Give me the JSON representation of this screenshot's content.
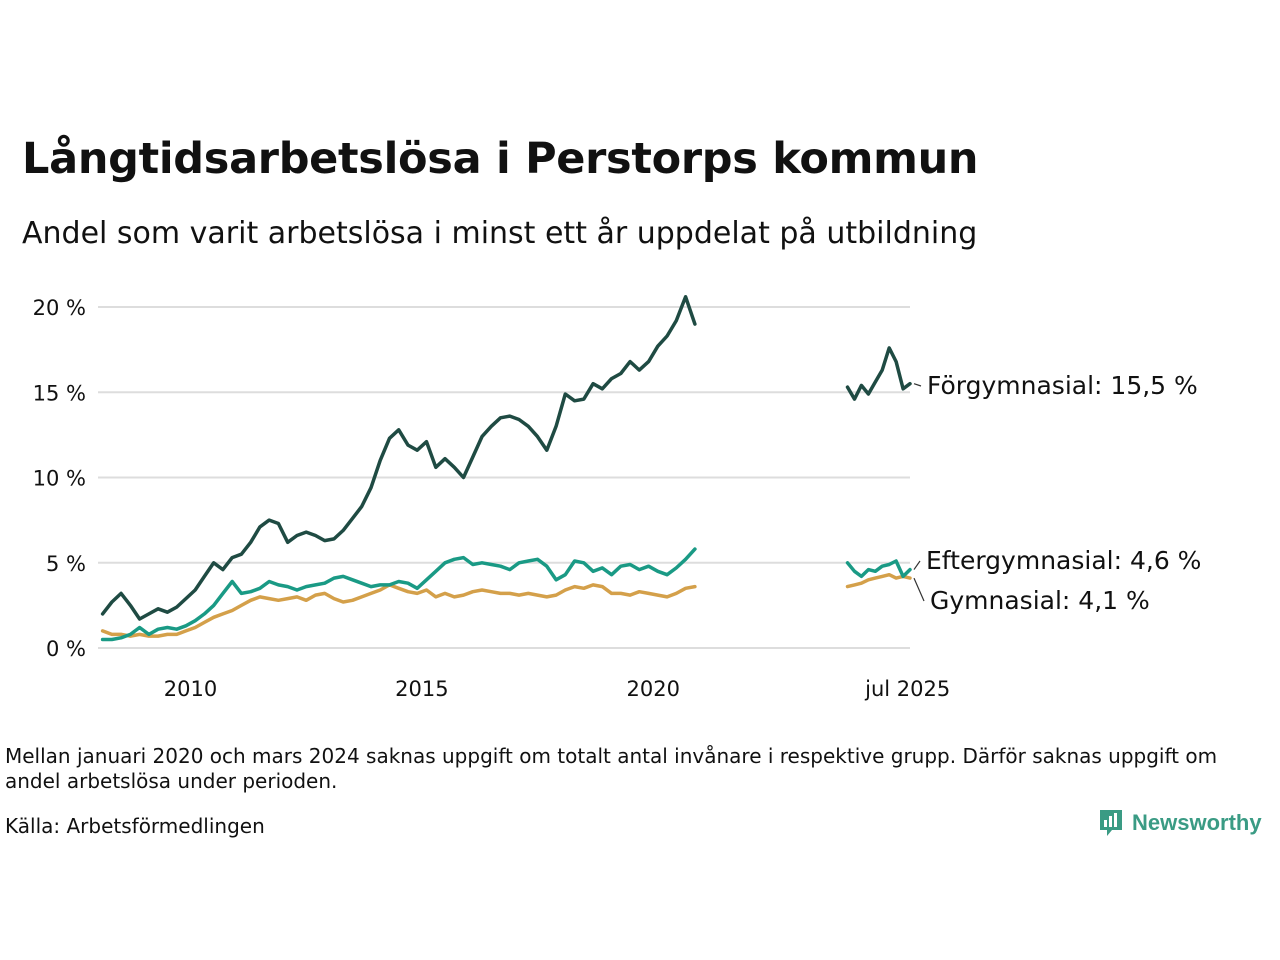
{
  "title": "Långtidsarbetslösa i Perstorps kommun",
  "subtitle": "Andel som varit arbetslösa i minst ett år uppdelat på utbildning",
  "note": "Mellan januari 2020 och mars 2024 saknas uppgift om totalt antal invånare i respektive grupp. Därför saknas uppgift om andel arbetslösa under perioden.",
  "source": "Källa: Arbetsförmedlingen",
  "brand": {
    "name": "Newsworthy",
    "icon": "newsworthy-logo-icon"
  },
  "colors": {
    "forgymnasial": "#1f4b43",
    "eftergymnasial": "#1a9a85",
    "gymnasial": "#d4a04a",
    "grid": "#dddddd"
  },
  "chart_data": {
    "type": "line",
    "title": "Långtidsarbetslösa i Perstorps kommun",
    "subtitle": "Andel som varit arbetslösa i minst ett år uppdelat på utbildning",
    "ylim": [
      0,
      21
    ],
    "y_ticks": [
      0,
      5,
      10,
      15,
      20
    ],
    "y_tick_labels": [
      "0 %",
      "5 %",
      "10 %",
      "15 %",
      "20 %"
    ],
    "x_tick_labels": [
      "2010",
      "2015",
      "2020",
      "jul 2025"
    ],
    "x_tick_years": [
      2010,
      2015,
      2020,
      2025.5
    ],
    "grid": true,
    "legend": "direct labels at line ends",
    "series": [
      {
        "name": "Förgymnasial",
        "end_label": "Förgymnasial: 15,5 %",
        "color": "#1f4b43",
        "segments": [
          {
            "x": [
              2008.1,
              2008.3,
              2008.5,
              2008.7,
              2008.9,
              2009.1,
              2009.3,
              2009.5,
              2009.7,
              2009.9,
              2010.1,
              2010.3,
              2010.5,
              2010.7,
              2010.9,
              2011.1,
              2011.3,
              2011.5,
              2011.7,
              2011.9,
              2012.1,
              2012.3,
              2012.5,
              2012.7,
              2012.9,
              2013.1,
              2013.3,
              2013.5,
              2013.7,
              2013.9,
              2014.1,
              2014.3,
              2014.5,
              2014.7,
              2014.9,
              2015.1,
              2015.3,
              2015.5,
              2015.7,
              2015.9,
              2016.1,
              2016.3,
              2016.5,
              2016.7,
              2016.9,
              2017.1,
              2017.3,
              2017.5,
              2017.7,
              2017.9,
              2018.1,
              2018.3,
              2018.5,
              2018.7,
              2018.9,
              2019.1,
              2019.3,
              2019.5,
              2019.7,
              2019.9,
              2020.1,
              2020.3,
              2020.5,
              2020.7,
              2020.9
            ],
            "y": [
              2.0,
              2.7,
              3.2,
              2.5,
              1.7,
              2.0,
              2.3,
              2.1,
              2.4,
              2.9,
              3.4,
              4.2,
              5.0,
              4.6,
              5.3,
              5.5,
              6.2,
              7.1,
              7.5,
              7.3,
              6.2,
              6.6,
              6.8,
              6.6,
              6.3,
              6.4,
              6.9,
              7.6,
              8.3,
              9.4,
              11.0,
              12.3,
              12.8,
              11.9,
              11.6,
              12.1,
              10.6,
              11.1,
              10.6,
              10.0,
              11.2,
              12.4,
              13.0,
              13.5,
              13.6,
              13.4,
              13.0,
              12.4,
              11.6,
              13.0,
              14.9,
              14.5,
              14.6,
              15.5,
              15.2,
              15.8,
              16.1,
              16.8,
              16.3,
              16.8,
              17.7,
              18.3,
              19.2,
              20.6,
              19.0
            ]
          },
          {
            "x": [
              2024.2,
              2024.35,
              2024.5,
              2024.65,
              2024.8,
              2024.95,
              2025.1,
              2025.25,
              2025.4,
              2025.55
            ],
            "y": [
              15.3,
              14.6,
              15.4,
              14.9,
              15.6,
              16.3,
              17.6,
              16.8,
              15.2,
              15.5
            ]
          }
        ]
      },
      {
        "name": "Eftergymnasial",
        "end_label": "Eftergymnasial:  4,6 %",
        "color": "#1a9a85",
        "segments": [
          {
            "x": [
              2008.1,
              2008.3,
              2008.5,
              2008.7,
              2008.9,
              2009.1,
              2009.3,
              2009.5,
              2009.7,
              2009.9,
              2010.1,
              2010.3,
              2010.5,
              2010.7,
              2010.9,
              2011.1,
              2011.3,
              2011.5,
              2011.7,
              2011.9,
              2012.1,
              2012.3,
              2012.5,
              2012.7,
              2012.9,
              2013.1,
              2013.3,
              2013.5,
              2013.7,
              2013.9,
              2014.1,
              2014.3,
              2014.5,
              2014.7,
              2014.9,
              2015.1,
              2015.3,
              2015.5,
              2015.7,
              2015.9,
              2016.1,
              2016.3,
              2016.5,
              2016.7,
              2016.9,
              2017.1,
              2017.3,
              2017.5,
              2017.7,
              2017.9,
              2018.1,
              2018.3,
              2018.5,
              2018.7,
              2018.9,
              2019.1,
              2019.3,
              2019.5,
              2019.7,
              2019.9,
              2020.1,
              2020.3,
              2020.5,
              2020.7,
              2020.9
            ],
            "y": [
              0.5,
              0.5,
              0.6,
              0.8,
              1.2,
              0.8,
              1.1,
              1.2,
              1.1,
              1.3,
              1.6,
              2.0,
              2.5,
              3.2,
              3.9,
              3.2,
              3.3,
              3.5,
              3.9,
              3.7,
              3.6,
              3.4,
              3.6,
              3.7,
              3.8,
              4.1,
              4.2,
              4.0,
              3.8,
              3.6,
              3.7,
              3.7,
              3.9,
              3.8,
              3.5,
              4.0,
              4.5,
              5.0,
              5.2,
              5.3,
              4.9,
              5.0,
              4.9,
              4.8,
              4.6,
              5.0,
              5.1,
              5.2,
              4.8,
              4.0,
              4.3,
              5.1,
              5.0,
              4.5,
              4.7,
              4.3,
              4.8,
              4.9,
              4.6,
              4.8,
              4.5,
              4.3,
              4.7,
              5.2,
              5.8
            ]
          },
          {
            "x": [
              2024.2,
              2024.35,
              2024.5,
              2024.65,
              2024.8,
              2024.95,
              2025.1,
              2025.25,
              2025.4,
              2025.55
            ],
            "y": [
              5.0,
              4.5,
              4.2,
              4.6,
              4.5,
              4.8,
              4.9,
              5.1,
              4.2,
              4.6
            ]
          }
        ]
      },
      {
        "name": "Gymnasial",
        "end_label": "Gymnasial:  4,1 %",
        "color": "#d4a04a",
        "segments": [
          {
            "x": [
              2008.1,
              2008.3,
              2008.5,
              2008.7,
              2008.9,
              2009.1,
              2009.3,
              2009.5,
              2009.7,
              2009.9,
              2010.1,
              2010.3,
              2010.5,
              2010.7,
              2010.9,
              2011.1,
              2011.3,
              2011.5,
              2011.7,
              2011.9,
              2012.1,
              2012.3,
              2012.5,
              2012.7,
              2012.9,
              2013.1,
              2013.3,
              2013.5,
              2013.7,
              2013.9,
              2014.1,
              2014.3,
              2014.5,
              2014.7,
              2014.9,
              2015.1,
              2015.3,
              2015.5,
              2015.7,
              2015.9,
              2016.1,
              2016.3,
              2016.5,
              2016.7,
              2016.9,
              2017.1,
              2017.3,
              2017.5,
              2017.7,
              2017.9,
              2018.1,
              2018.3,
              2018.5,
              2018.7,
              2018.9,
              2019.1,
              2019.3,
              2019.5,
              2019.7,
              2019.9,
              2020.1,
              2020.3,
              2020.5,
              2020.7,
              2020.9
            ],
            "y": [
              1.0,
              0.8,
              0.8,
              0.7,
              0.8,
              0.7,
              0.7,
              0.8,
              0.8,
              1.0,
              1.2,
              1.5,
              1.8,
              2.0,
              2.2,
              2.5,
              2.8,
              3.0,
              2.9,
              2.8,
              2.9,
              3.0,
              2.8,
              3.1,
              3.2,
              2.9,
              2.7,
              2.8,
              3.0,
              3.2,
              3.4,
              3.7,
              3.5,
              3.3,
              3.2,
              3.4,
              3.0,
              3.2,
              3.0,
              3.1,
              3.3,
              3.4,
              3.3,
              3.2,
              3.2,
              3.1,
              3.2,
              3.1,
              3.0,
              3.1,
              3.4,
              3.6,
              3.5,
              3.7,
              3.6,
              3.2,
              3.2,
              3.1,
              3.3,
              3.2,
              3.1,
              3.0,
              3.2,
              3.5,
              3.6
            ]
          },
          {
            "x": [
              2024.2,
              2024.35,
              2024.5,
              2024.65,
              2024.8,
              2024.95,
              2025.1,
              2025.25,
              2025.4,
              2025.55
            ],
            "y": [
              3.6,
              3.7,
              3.8,
              4.0,
              4.1,
              4.2,
              4.3,
              4.1,
              4.2,
              4.1
            ]
          }
        ]
      }
    ]
  }
}
